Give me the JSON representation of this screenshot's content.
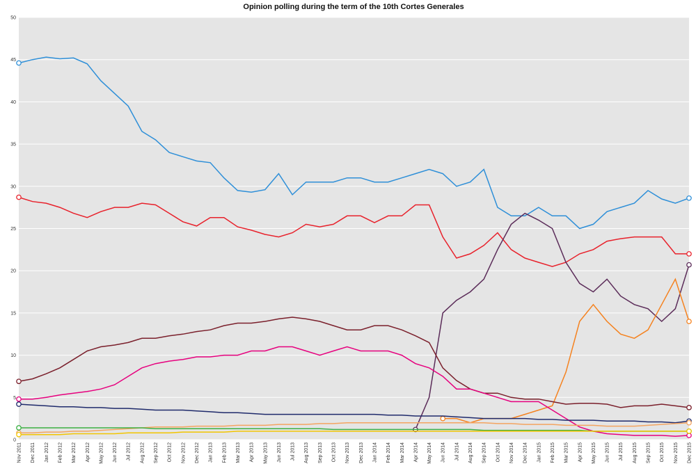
{
  "chart_data": {
    "type": "line",
    "title": "Opinion polling during the term of the 10th Cortes Generales",
    "categories": [
      "Nov 2011",
      "Dec 2011",
      "Jan 2012",
      "Feb 2012",
      "Mar 2012",
      "Apr 2012",
      "May 2012",
      "Jun 2012",
      "Jul 2012",
      "Aug 2012",
      "Sep 2012",
      "Oct 2012",
      "Nov 2012",
      "Dec 2012",
      "Jan 2013",
      "Feb 2013",
      "Mar 2013",
      "Apr 2013",
      "May 2013",
      "Jun 2013",
      "Jul 2013",
      "Aug 2013",
      "Sep 2013",
      "Oct 2013",
      "Nov 2013",
      "Dec 2013",
      "Jan 2014",
      "Feb 2014",
      "Mar 2014",
      "Apr 2014",
      "May 2014",
      "Jun 2014",
      "Jul 2014",
      "Aug 2014",
      "Sep 2014",
      "Oct 2014",
      "Nov 2014",
      "Dec 2014",
      "Jan 2015",
      "Feb 2015",
      "Mar 2015",
      "Apr 2015",
      "May 2015",
      "Jun 2015",
      "Jul 2015",
      "Aug 2015",
      "Sep 2015",
      "Oct 2015",
      "Nov 2015",
      "Dec 2015"
    ],
    "series": [
      {
        "color": "#2e8fd8",
        "values": [
          44.6,
          45,
          45.3,
          45.1,
          45.2,
          44.5,
          42.5,
          41,
          39.5,
          36.5,
          35.5,
          34,
          33.5,
          33,
          32.8,
          31,
          29.5,
          29.3,
          29.6,
          31.5,
          29,
          30.5,
          30.5,
          30.5,
          31,
          31,
          30.5,
          30.5,
          31,
          31.5,
          32,
          31.5,
          30,
          30.5,
          32,
          27.5,
          26.5,
          26.5,
          27.5,
          26.5,
          26.5,
          25,
          25.5,
          27,
          27.5,
          28,
          29.5,
          28.5,
          28,
          28.6
        ]
      },
      {
        "color": "#e8212b",
        "values": [
          28.7,
          28.2,
          28,
          27.5,
          26.8,
          26.3,
          27,
          27.5,
          27.5,
          28,
          27.8,
          26.8,
          25.8,
          25.3,
          26.3,
          26.3,
          25.2,
          24.8,
          24.3,
          24,
          24.5,
          25.5,
          25.2,
          25.5,
          26.5,
          26.5,
          25.7,
          26.5,
          26.5,
          27.8,
          27.8,
          24,
          21.5,
          22,
          23,
          24.5,
          22.5,
          21.5,
          21,
          20.5,
          21,
          22,
          22.5,
          23.5,
          23.8,
          24,
          24,
          24,
          22,
          22
        ]
      },
      {
        "color": "#5b2c59",
        "values": [
          null,
          null,
          null,
          null,
          null,
          null,
          null,
          null,
          null,
          null,
          null,
          null,
          null,
          null,
          null,
          null,
          null,
          null,
          null,
          null,
          null,
          null,
          null,
          null,
          null,
          null,
          null,
          null,
          null,
          1.2,
          5,
          15,
          16.5,
          17.5,
          19,
          22.5,
          25.5,
          26.8,
          26,
          25,
          21,
          18.5,
          17.5,
          19,
          17,
          16,
          15.5,
          14,
          15.5,
          20.7
        ]
      },
      {
        "color": "#f5821f",
        "values": [
          null,
          null,
          null,
          null,
          null,
          null,
          null,
          null,
          null,
          null,
          null,
          null,
          null,
          null,
          null,
          null,
          null,
          null,
          null,
          null,
          null,
          null,
          null,
          null,
          null,
          null,
          null,
          null,
          null,
          null,
          null,
          2.5,
          2.5,
          2,
          2.5,
          2.5,
          2.5,
          3,
          3.5,
          4,
          8,
          14,
          16,
          14,
          12.5,
          12,
          13,
          16,
          19,
          14
        ]
      },
      {
        "color": "#7a1f2b",
        "values": [
          6.9,
          7.2,
          7.8,
          8.5,
          9.5,
          10.5,
          11,
          11.2,
          11.5,
          12,
          12,
          12.3,
          12.5,
          12.8,
          13,
          13.5,
          13.8,
          13.8,
          14,
          14.3,
          14.5,
          14.3,
          14,
          13.5,
          13,
          13,
          13.5,
          13.5,
          13,
          12.3,
          11.5,
          8.5,
          7,
          6,
          5.5,
          5.5,
          5,
          4.8,
          4.8,
          4.5,
          4.2,
          4.3,
          4.3,
          4.2,
          3.8,
          4,
          4,
          4.2,
          4,
          3.8
        ]
      },
      {
        "color": "#e6007e",
        "values": [
          4.8,
          4.8,
          5,
          5.3,
          5.5,
          5.7,
          6,
          6.5,
          7.5,
          8.5,
          9,
          9.3,
          9.5,
          9.8,
          9.8,
          10,
          10,
          10.5,
          10.5,
          11,
          11,
          10.5,
          10,
          10.5,
          11,
          10.5,
          10.5,
          10.5,
          10,
          9,
          8.5,
          7.5,
          6,
          6,
          5.5,
          5,
          4.5,
          4.5,
          4.5,
          3.5,
          2.5,
          1.5,
          1,
          0.7,
          0.6,
          0.5,
          0.5,
          0.5,
          0.4,
          0.5
        ]
      },
      {
        "color": "#1f2a6b",
        "values": [
          4.2,
          4.1,
          4,
          3.9,
          3.9,
          3.8,
          3.8,
          3.7,
          3.7,
          3.6,
          3.5,
          3.5,
          3.5,
          3.4,
          3.3,
          3.2,
          3.2,
          3.1,
          3,
          3,
          3,
          3,
          3,
          3,
          3,
          3,
          3,
          2.9,
          2.9,
          2.8,
          2.8,
          2.8,
          2.7,
          2.6,
          2.5,
          2.5,
          2.5,
          2.5,
          2.4,
          2.4,
          2.3,
          2.3,
          2.3,
          2.2,
          2.2,
          2.2,
          2.1,
          2.1,
          2,
          2.2
        ]
      },
      {
        "color": "#f4a460",
        "values": [
          0.8,
          0.8,
          0.9,
          0.9,
          1,
          1,
          1.1,
          1.2,
          1.3,
          1.4,
          1.5,
          1.5,
          1.5,
          1.6,
          1.6,
          1.6,
          1.7,
          1.7,
          1.7,
          1.8,
          1.8,
          1.8,
          1.9,
          1.9,
          2,
          2,
          2,
          2,
          2,
          2,
          2,
          2,
          2,
          2,
          2,
          1.9,
          1.9,
          1.8,
          1.8,
          1.8,
          1.7,
          1.7,
          1.7,
          1.6,
          1.6,
          1.6,
          1.7,
          1.8,
          1.9,
          2
        ]
      },
      {
        "color": "#3cb043",
        "values": [
          1.4,
          1.4,
          1.4,
          1.4,
          1.4,
          1.4,
          1.4,
          1.4,
          1.4,
          1.4,
          1.3,
          1.3,
          1.3,
          1.3,
          1.3,
          1.3,
          1.3,
          1.3,
          1.3,
          1.3,
          1.3,
          1.3,
          1.3,
          1.2,
          1.2,
          1.2,
          1.2,
          1.2,
          1.2,
          1.2,
          1.2,
          1.2,
          1.2,
          1.2,
          1.1,
          1.1,
          1.1,
          1.1,
          1.1,
          1.1,
          1.1,
          1.1,
          1,
          1,
          1,
          1,
          1,
          1,
          1,
          1
        ]
      },
      {
        "color": "#f2c500",
        "values": [
          0.6,
          0.6,
          0.6,
          0.6,
          0.7,
          0.7,
          0.7,
          0.7,
          0.8,
          0.8,
          0.8,
          0.8,
          0.9,
          0.9,
          0.9,
          0.9,
          1,
          1,
          1,
          1,
          1,
          1,
          1,
          1,
          1,
          1,
          1,
          1,
          1,
          1,
          1,
          1,
          1,
          1,
          1,
          1,
          1,
          1,
          1,
          1,
          1,
          1,
          1,
          1,
          1,
          1,
          1,
          1,
          1,
          1
        ]
      }
    ],
    "ylim": [
      0,
      50
    ],
    "yticks": [
      0,
      5,
      10,
      15,
      20,
      25,
      30,
      35,
      40,
      45,
      50
    ],
    "grid": true
  }
}
